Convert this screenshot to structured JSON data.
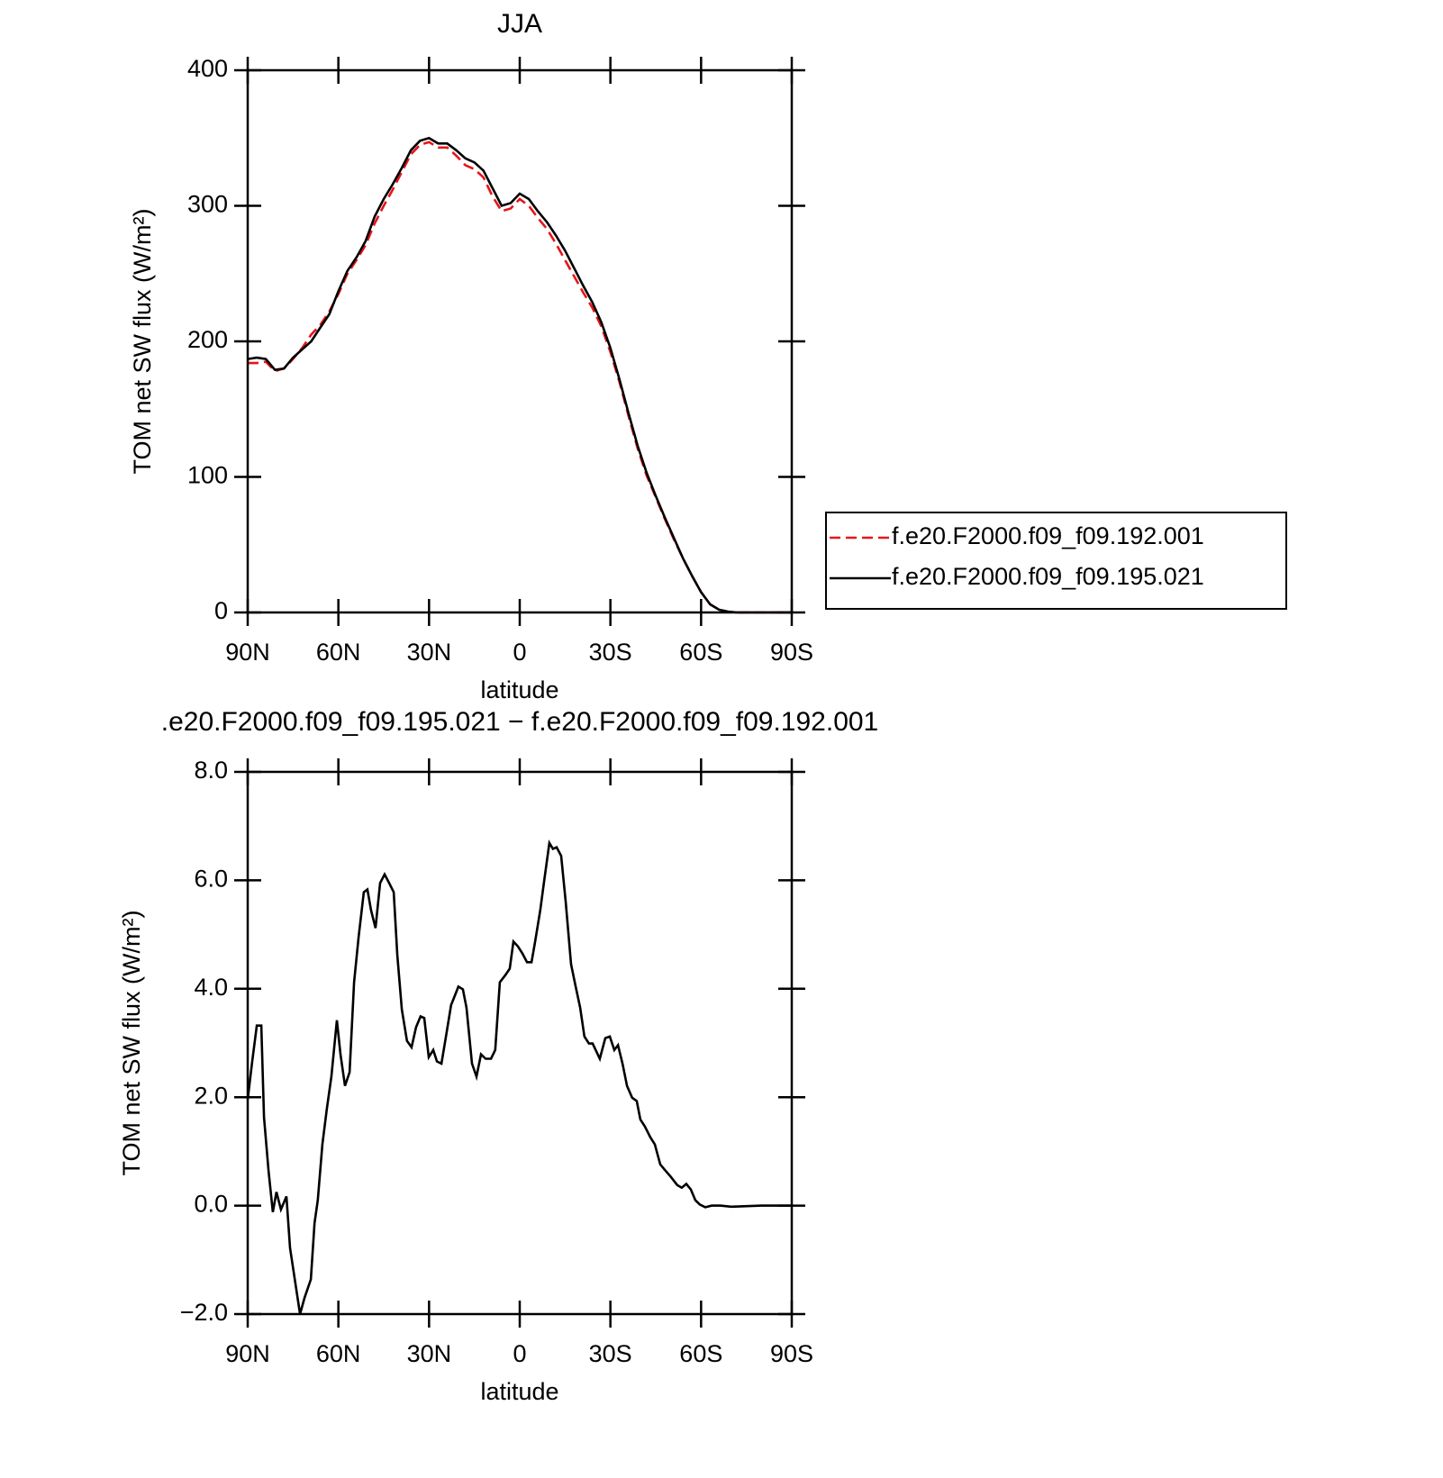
{
  "chart_data": [
    {
      "type": "line",
      "title": "JJA",
      "xlabel": "latitude",
      "ylabel": "TOM net SW flux (W/m²)",
      "xlim": [
        90,
        -90
      ],
      "xticks": [
        {
          "value": 90,
          "label": "90N"
        },
        {
          "value": 60,
          "label": "60N"
        },
        {
          "value": 30,
          "label": "30N"
        },
        0,
        {
          "value": -30,
          "label": "30S"
        },
        {
          "value": -60,
          "label": "60S"
        },
        {
          "value": -90,
          "label": "90S"
        }
      ],
      "ylim": [
        0,
        400
      ],
      "yticks": [
        0,
        100,
        200,
        300,
        400
      ],
      "legend": "outside-right",
      "x": [
        90,
        87,
        84,
        81,
        78,
        75,
        72,
        69,
        66,
        63,
        60,
        57,
        54,
        51,
        48,
        45,
        42,
        39,
        36,
        33,
        30,
        27,
        24,
        21,
        18,
        15,
        12,
        9,
        6,
        3,
        0,
        -3,
        -6,
        -9,
        -12,
        -15,
        -18,
        -21,
        -24,
        -27,
        -30,
        -33,
        -36,
        -39,
        -42,
        -45,
        -48,
        -51,
        -54,
        -57,
        -60,
        -63,
        -66,
        -69,
        -72,
        -75,
        -78,
        -81,
        -84,
        -87,
        -90
      ],
      "series": [
        {
          "name": "f.e20.F2000.f09_f09.192.001",
          "color": "#e8141a",
          "dashed": true,
          "values": [
            184,
            184,
            185,
            178,
            180,
            187,
            195,
            205,
            212,
            222,
            235,
            250,
            260,
            271,
            287,
            300,
            312,
            325,
            338,
            345,
            347,
            343,
            343,
            337,
            330,
            327,
            321,
            307,
            296,
            298,
            305,
            300,
            291,
            283,
            272,
            260,
            248,
            236,
            225,
            211,
            192,
            170,
            145,
            121,
            101,
            85,
            69,
            54,
            40,
            27,
            15,
            6,
            2,
            0.5,
            0,
            0,
            0,
            0,
            0,
            0,
            0
          ]
        },
        {
          "name": "f.e20.F2000.f09_f09.195.021",
          "color": "#000000",
          "dashed": false,
          "values": [
            187,
            188,
            187,
            179,
            180,
            188,
            194,
            200,
            210,
            220,
            237,
            252,
            262,
            274,
            292,
            305,
            316,
            328,
            341,
            348,
            350,
            346,
            346,
            341,
            335,
            332,
            326,
            313,
            300,
            302,
            309,
            305,
            296,
            288,
            278,
            267,
            254,
            241,
            229,
            214,
            195,
            172,
            147,
            123,
            103,
            86,
            70,
            55,
            40,
            27,
            15,
            6,
            2,
            0.5,
            0,
            0,
            0,
            0,
            0,
            0,
            0
          ]
        }
      ]
    },
    {
      "type": "line",
      "title": ".e20.F2000.f09_f09.195.021 − f.e20.F2000.f09_f09.192.001",
      "xlabel": "latitude",
      "ylabel": "TOM net SW flux (W/m²)",
      "xlim": [
        90,
        -90
      ],
      "xticks": [
        {
          "value": 90,
          "label": "90N"
        },
        {
          "value": 60,
          "label": "60N"
        },
        {
          "value": 30,
          "label": "30N"
        },
        0,
        {
          "value": -30,
          "label": "30S"
        },
        {
          "value": -60,
          "label": "60S"
        },
        {
          "value": -90,
          "label": "90S"
        }
      ],
      "ylim": [
        -2,
        8
      ],
      "yticks": [
        {
          "value": -2,
          "label": "−2.0"
        },
        {
          "value": 0,
          "label": "0.0"
        },
        {
          "value": 2,
          "label": "2.0"
        },
        {
          "value": 4,
          "label": "4.0"
        },
        {
          "value": 6,
          "label": "6.0"
        },
        {
          "value": 8,
          "label": "8.0"
        }
      ],
      "x": [
        90,
        88.5,
        87,
        85.5,
        84.6,
        83.1,
        81.7,
        80.5,
        79,
        77.2,
        76,
        74.5,
        72.7,
        71.2,
        69.1,
        67.9,
        66.8,
        65.3,
        63.8,
        62.3,
        60.5,
        59.3,
        57.8,
        56.3,
        54.8,
        53.3,
        51.6,
        50.4,
        49.2,
        47.7,
        46.2,
        44.7,
        43.2,
        41.7,
        40.5,
        39,
        37.3,
        35.8,
        34.3,
        32.8,
        31.6,
        30.1,
        28.6,
        27.4,
        25.9,
        24.4,
        22.7,
        21.5,
        20.3,
        18.8,
        17.6,
        15.8,
        14.3,
        12.8,
        11.3,
        9.5,
        8.1,
        6.6,
        4.8,
        3.3,
        2.1,
        0.6,
        -0.9,
        -2.4,
        -3.9,
        -5.1,
        -6.8,
        -8,
        -9.8,
        -11,
        -12.2,
        -13.7,
        -15.2,
        -17,
        -18.5,
        -20,
        -21.4,
        -22.9,
        -24.1,
        -26.5,
        -28.3,
        -29.8,
        -31.3,
        -32.5,
        -34,
        -35.5,
        -37.2,
        -38.7,
        -39.9,
        -41.4,
        -43.2,
        -44.7,
        -46.5,
        -48,
        -50,
        -52.1,
        -53.6,
        -55.1,
        -56.6,
        -58.1,
        -59.6,
        -61.4,
        -63.5,
        -66.4,
        -70,
        -75,
        -80,
        -90
      ],
      "series": [
        {
          "name": "f.e20.F2000.f09_f09.195.021",
          "color": "#000000",
          "dashed": false,
          "values": [
            1.96,
            2.66,
            3.32,
            3.32,
            1.63,
            0.63,
            -0.12,
            0.25,
            -0.07,
            0.17,
            -0.78,
            -1.33,
            -2.0,
            -1.7,
            -1.36,
            -0.32,
            0.1,
            1.13,
            1.79,
            2.38,
            3.42,
            2.79,
            2.21,
            2.46,
            4.12,
            4.95,
            5.78,
            5.83,
            5.45,
            5.12,
            5.95,
            6.11,
            5.95,
            5.78,
            4.62,
            3.62,
            3.04,
            2.92,
            3.29,
            3.49,
            3.46,
            2.74,
            2.87,
            2.66,
            2.62,
            3.12,
            3.7,
            3.87,
            4.04,
            3.99,
            3.65,
            2.62,
            2.38,
            2.79,
            2.71,
            2.71,
            2.87,
            4.12,
            4.25,
            4.37,
            4.87,
            4.78,
            4.65,
            4.49,
            4.49,
            4.87,
            5.45,
            5.95,
            6.69,
            6.58,
            6.61,
            6.45,
            5.61,
            4.45,
            4.04,
            3.65,
            3.12,
            2.99,
            2.99,
            2.71,
            3.09,
            3.12,
            2.87,
            2.96,
            2.62,
            2.21,
            1.99,
            1.93,
            1.59,
            1.46,
            1.26,
            1.13,
            0.76,
            0.66,
            0.53,
            0.38,
            0.33,
            0.4,
            0.3,
            0.1,
            0.02,
            -0.03,
            0,
            0,
            -0.02,
            -0.01,
            0,
            0
          ]
        }
      ]
    }
  ]
}
